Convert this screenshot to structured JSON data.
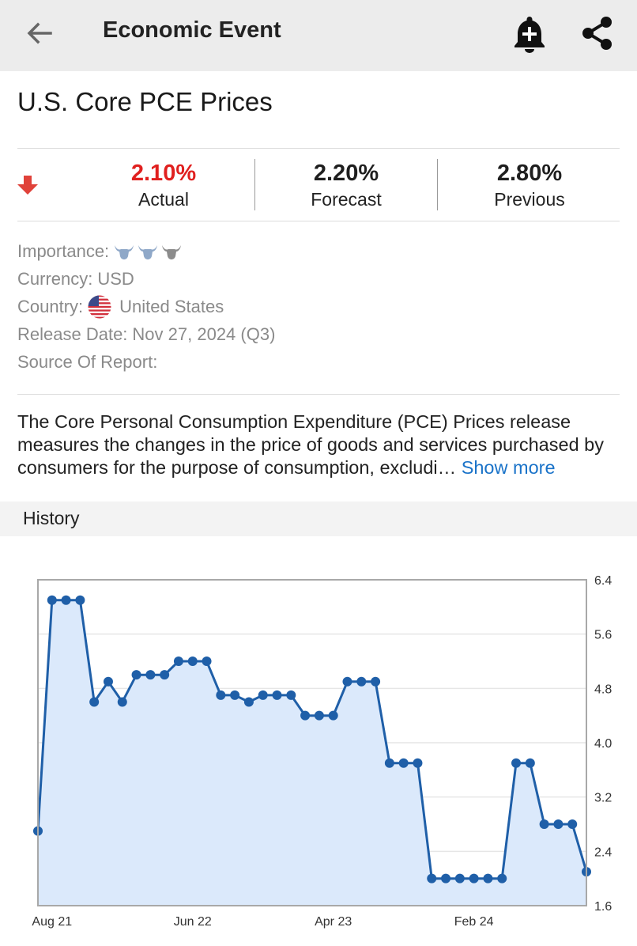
{
  "appbar": {
    "title": "Economic Event",
    "icons": {
      "back": "arrow-left-icon",
      "alert": "bell-plus-icon",
      "share": "share-icon"
    }
  },
  "event": {
    "title": "U.S. Core PCE Prices",
    "direction_icon": "arrow-down-icon",
    "actual": {
      "value": "2.10%",
      "label": "Actual"
    },
    "forecast": {
      "value": "2.20%",
      "label": "Forecast"
    },
    "previous": {
      "value": "2.80%",
      "label": "Previous"
    }
  },
  "meta": {
    "importance_label": "Importance:",
    "importance_level": 2,
    "currency_label": "Currency:",
    "currency_value": "USD",
    "country_label": "Country:",
    "country_value": "United States",
    "release_label": "Release Date:",
    "release_value": "Nov 27, 2024 (Q3)",
    "source_label": "Source Of Report:"
  },
  "description": {
    "text": "The Core Personal Consumption Expenditure (PCE) Prices release measures the changes in the price of goods and services purchased by consumers for the purpose of consumption, excludi…",
    "show_more": "Show more"
  },
  "history": {
    "label": "History"
  },
  "colors": {
    "accent_red": "#e0201f",
    "link_blue": "#1a73c9",
    "line_blue": "#1f5fa8",
    "area_fill": "#dbe9fb"
  },
  "chart_data": {
    "type": "line",
    "x_ticks": [
      "Aug 21",
      "Jun 22",
      "Apr 23",
      "Feb 24"
    ],
    "x_tick_index": [
      1,
      11,
      21,
      31
    ],
    "y_ticks": [
      "6.4",
      "5.6",
      "4.8",
      "4.0",
      "3.2",
      "2.4",
      "1.6"
    ],
    "ylim": [
      1.6,
      6.4
    ],
    "values": [
      2.7,
      6.1,
      6.1,
      6.1,
      4.6,
      4.9,
      4.6,
      5.0,
      5.0,
      5.0,
      5.2,
      5.2,
      5.2,
      4.7,
      4.7,
      4.6,
      4.7,
      4.7,
      4.7,
      4.4,
      4.4,
      4.4,
      4.9,
      4.9,
      4.9,
      3.7,
      3.7,
      3.7,
      2.0,
      2.0,
      2.0,
      2.0,
      2.0,
      2.0,
      3.7,
      3.7,
      2.8,
      2.8,
      2.8,
      2.1
    ],
    "grid": true,
    "y_axis_side": "right"
  }
}
